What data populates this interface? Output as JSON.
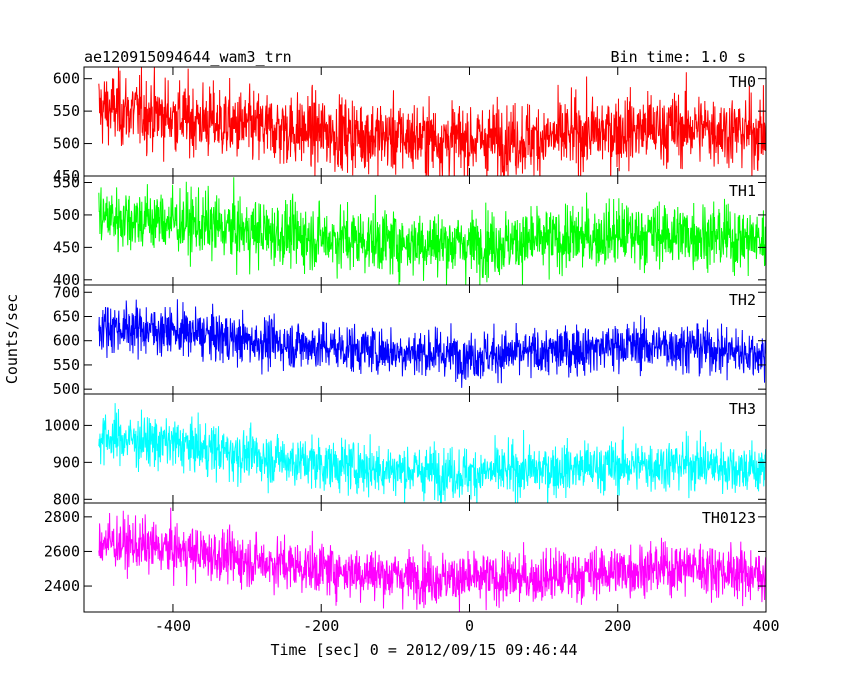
{
  "header": {
    "title": "ae120915094644_wam3_trn",
    "bin_time": "Bin time: 1.0 s"
  },
  "axes": {
    "ylabel": "Counts/sec",
    "xlabel": "Time [sec] 0 = 2012/09/15 09:46:44",
    "xlim": [
      -520,
      400
    ],
    "xticks": [
      -400,
      -200,
      0,
      200,
      400
    ]
  },
  "chart_data": [
    {
      "type": "line",
      "name": "TH0",
      "color": "#ff0000",
      "ylim": [
        450,
        618
      ],
      "yticks": [
        450,
        500,
        550,
        600
      ],
      "x_range": [
        -500,
        400
      ],
      "trend": [
        [
          -500,
          555
        ],
        [
          -420,
          545
        ],
        [
          -300,
          525
        ],
        [
          -200,
          518
        ],
        [
          -100,
          510
        ],
        [
          0,
          505
        ],
        [
          100,
          508
        ],
        [
          200,
          520
        ],
        [
          300,
          525
        ],
        [
          400,
          515
        ]
      ],
      "noise": 28
    },
    {
      "type": "line",
      "name": "TH1",
      "color": "#00ff00",
      "ylim": [
        392,
        560
      ],
      "yticks": [
        400,
        450,
        500,
        550
      ],
      "x_range": [
        -500,
        400
      ],
      "trend": [
        [
          -500,
          498
        ],
        [
          -400,
          490
        ],
        [
          -300,
          475
        ],
        [
          -200,
          465
        ],
        [
          -100,
          458
        ],
        [
          0,
          455
        ],
        [
          100,
          460
        ],
        [
          200,
          470
        ],
        [
          300,
          470
        ],
        [
          400,
          460
        ]
      ],
      "noise": 25
    },
    {
      "type": "line",
      "name": "TH2",
      "color": "#0000ff",
      "ylim": [
        490,
        715
      ],
      "yticks": [
        500,
        550,
        600,
        650,
        700
      ],
      "x_range": [
        -500,
        400
      ],
      "trend": [
        [
          -500,
          630
        ],
        [
          -400,
          620
        ],
        [
          -300,
          600
        ],
        [
          -200,
          588
        ],
        [
          -100,
          578
        ],
        [
          0,
          570
        ],
        [
          100,
          575
        ],
        [
          200,
          590
        ],
        [
          300,
          588
        ],
        [
          400,
          570
        ]
      ],
      "noise": 25
    },
    {
      "type": "line",
      "name": "TH3",
      "color": "#00ffff",
      "ylim": [
        790,
        1085
      ],
      "yticks": [
        800,
        900,
        1000
      ],
      "x_range": [
        -500,
        400
      ],
      "trend": [
        [
          -500,
          970
        ],
        [
          -400,
          950
        ],
        [
          -300,
          920
        ],
        [
          -200,
          895
        ],
        [
          -100,
          880
        ],
        [
          0,
          870
        ],
        [
          100,
          880
        ],
        [
          200,
          890
        ],
        [
          300,
          895
        ],
        [
          400,
          880
        ]
      ],
      "noise": 35
    },
    {
      "type": "line",
      "name": "TH0123",
      "color": "#ff00ff",
      "ylim": [
        2250,
        2880
      ],
      "yticks": [
        2400,
        2600,
        2800
      ],
      "x_range": [
        -500,
        400
      ],
      "trend": [
        [
          -500,
          2660
        ],
        [
          -400,
          2610
        ],
        [
          -300,
          2550
        ],
        [
          -200,
          2500
        ],
        [
          -100,
          2460
        ],
        [
          0,
          2440
        ],
        [
          100,
          2450
        ],
        [
          200,
          2490
        ],
        [
          300,
          2510
        ],
        [
          400,
          2460
        ]
      ],
      "noise": 75
    }
  ]
}
